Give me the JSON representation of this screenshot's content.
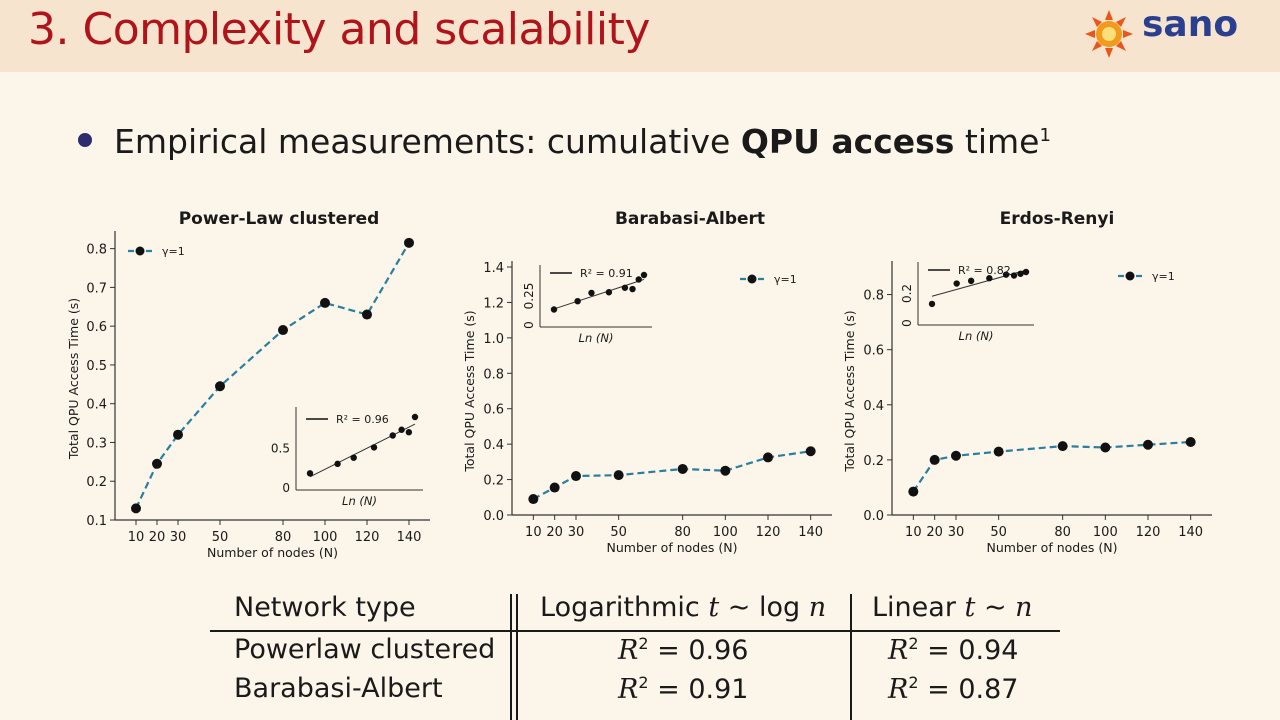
{
  "header": {
    "title": "3. Complexity and scalability",
    "logo_text": "sano"
  },
  "bullet": {
    "prefix": "Empirical measurements: cumulative ",
    "bold": "QPU access",
    "suffix": " time",
    "footnote": "1"
  },
  "chart_data": [
    {
      "type": "line",
      "title": "Power-Law clustered",
      "xlabel": "Number of nodes (N)",
      "ylabel": "Total QPU Access Time (s)",
      "x": [
        10,
        20,
        30,
        50,
        80,
        100,
        120,
        140
      ],
      "series": [
        {
          "name": "γ=1",
          "values": [
            0.13,
            0.245,
            0.32,
            0.445,
            0.59,
            0.66,
            0.63,
            0.815
          ]
        }
      ],
      "xticks": [
        10,
        20,
        30,
        50,
        80,
        100,
        120,
        140
      ],
      "yticks": [
        0.1,
        0.2,
        0.3,
        0.4,
        0.5,
        0.6,
        0.7,
        0.8
      ],
      "ylim": [
        0.1,
        0.83
      ],
      "legend": "top-left",
      "inset": {
        "position": "bottom-right",
        "legend": "R² = 0.96",
        "xlabel": "Ln (N)",
        "yticks": [
          0.0,
          0.5
        ],
        "points": [
          0.13,
          0.245,
          0.32,
          0.445,
          0.59,
          0.66,
          0.63,
          0.815
        ]
      }
    },
    {
      "type": "line",
      "title": "Barabasi-Albert",
      "xlabel": "Number of nodes (N)",
      "ylabel": "Total QPU Access Time (s)",
      "x": [
        10,
        20,
        30,
        50,
        80,
        100,
        120,
        140
      ],
      "series": [
        {
          "name": "γ=1",
          "values": [
            0.09,
            0.155,
            0.22,
            0.225,
            0.26,
            0.25,
            0.325,
            0.36
          ]
        }
      ],
      "xticks": [
        10,
        20,
        30,
        50,
        80,
        100,
        120,
        140
      ],
      "yticks": [
        0.0,
        0.2,
        0.4,
        0.6,
        0.8,
        1.0,
        1.2,
        1.4
      ],
      "ylim": [
        0,
        1.4
      ],
      "legend": "top-right",
      "inset": {
        "position": "top-left",
        "legend": "R² = 0.91",
        "xlabel": "Ln (N)",
        "yticks": [
          0,
          0.25
        ],
        "points": [
          0.09,
          0.155,
          0.22,
          0.225,
          0.26,
          0.25,
          0.325,
          0.36
        ]
      }
    },
    {
      "type": "line",
      "title": "Erdos-Renyi",
      "xlabel": "Number of nodes (N)",
      "ylabel": "Total QPU Access Time (s)",
      "x": [
        10,
        20,
        30,
        50,
        80,
        100,
        120,
        140
      ],
      "series": [
        {
          "name": "γ=1",
          "values": [
            0.085,
            0.2,
            0.215,
            0.23,
            0.25,
            0.245,
            0.255,
            0.265
          ]
        }
      ],
      "xticks": [
        10,
        20,
        30,
        50,
        80,
        100,
        120,
        140
      ],
      "yticks": [
        0.0,
        0.2,
        0.4,
        0.6,
        0.8
      ],
      "ylim": [
        0,
        0.9
      ],
      "legend": "top-right",
      "inset": {
        "position": "top-left",
        "legend": "R² = 0.82",
        "xlabel": "Ln (N)",
        "yticks": [
          0,
          0.2
        ],
        "points": [
          0.085,
          0.2,
          0.215,
          0.23,
          0.25,
          0.245,
          0.255,
          0.265
        ]
      }
    }
  ],
  "table": {
    "headers": [
      "Network type",
      "Logarithmic",
      "Linear"
    ],
    "rows": [
      {
        "name": "Powerlaw clustered",
        "log": "0.96",
        "lin": "0.94"
      },
      {
        "name": "Barabasi-Albert",
        "log": "0.91",
        "lin": "0.87"
      }
    ]
  },
  "colors": {
    "title": "#b0141a",
    "line": "#2a7ea0",
    "marker": "#111111",
    "header_bg": "#f6e4cf",
    "slide_bg": "#fbf6e9"
  }
}
